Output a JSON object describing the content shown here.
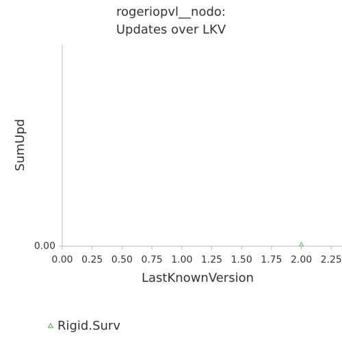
{
  "chart_data": {
    "type": "scatter",
    "title": [
      "rogeriopvl__nodo:",
      "Updates over LKV"
    ],
    "x_label": "LastKnownVersion",
    "y_label": "SumUpd",
    "series": [
      {
        "name": "Rigid.Surv",
        "color": "#5cb85c",
        "x": [
          2.0
        ],
        "values": [
          0
        ]
      }
    ],
    "xlim": [
      0,
      2.34
    ],
    "ylim": [
      0,
      1
    ],
    "xticks": [
      {
        "value": 0,
        "label": "0.00"
      },
      {
        "value": 0.25,
        "label": "0.25"
      },
      {
        "value": 0.5,
        "label": "0.50"
      },
      {
        "value": 0.75,
        "label": "0.75"
      },
      {
        "value": 1,
        "label": "1.00"
      },
      {
        "value": 1.25,
        "label": "1.25"
      },
      {
        "value": 1.5,
        "label": "1.50"
      },
      {
        "value": 1.75,
        "label": "1.75"
      },
      {
        "value": 2,
        "label": "2.00"
      },
      {
        "value": 2.25,
        "label": "2.25"
      }
    ],
    "yticks": [
      {
        "value": 0,
        "label": "0.00"
      }
    ]
  }
}
